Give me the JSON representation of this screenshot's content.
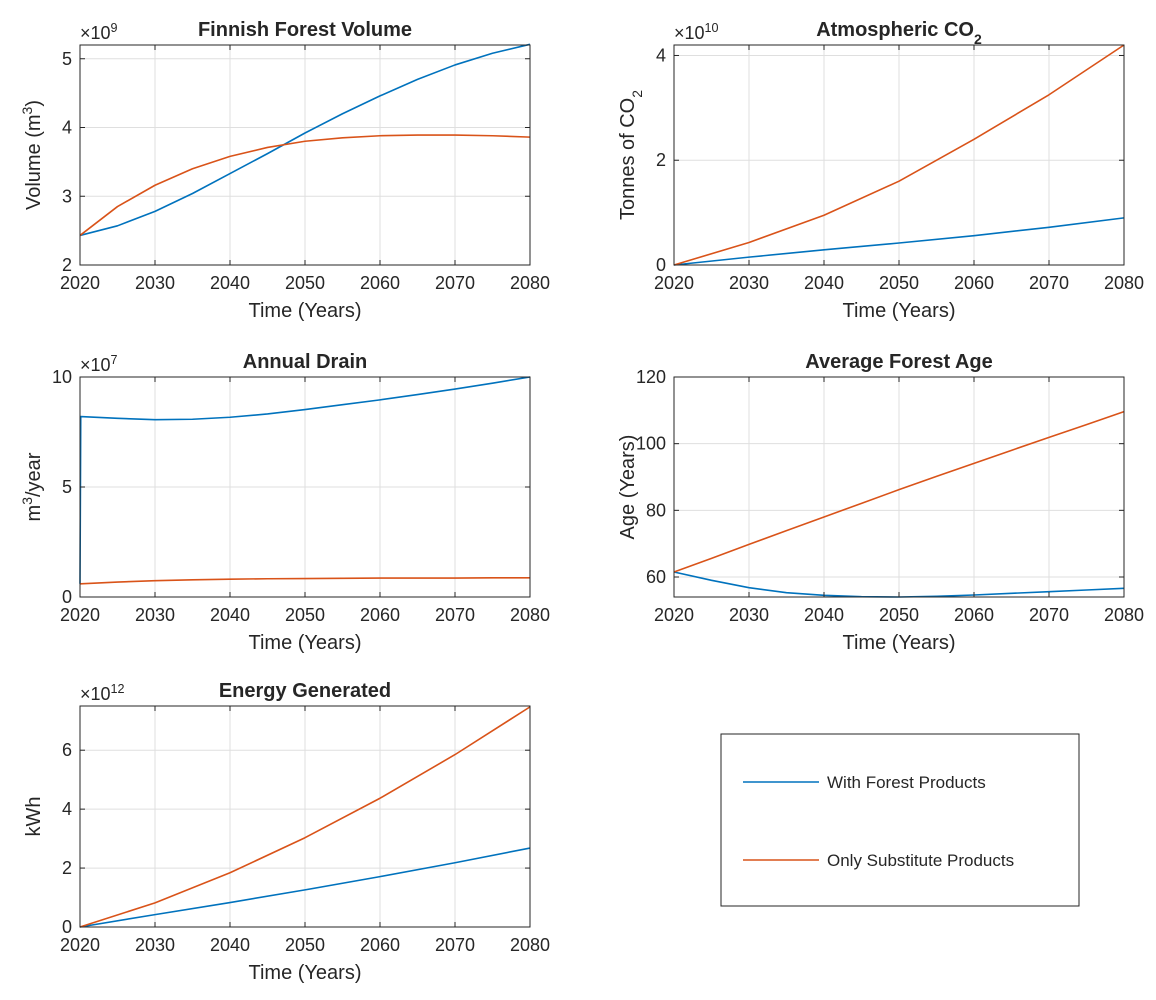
{
  "colors": {
    "series_1": "#0072BD",
    "series_2": "#D95319",
    "grid": "#dfdfdf",
    "axis": "#262626"
  },
  "legend": {
    "entries": [
      {
        "label": "With Forest Products",
        "color": "#0072BD"
      },
      {
        "label": "Only Substitute Products",
        "color": "#D95319"
      }
    ]
  },
  "chart_data": [
    {
      "type": "line",
      "title": "Finnish Forest Volume",
      "xlabel": "Time (Years)",
      "ylabel": "Volume (m^3)",
      "y_exponent": "9",
      "xlim": [
        2020,
        2080
      ],
      "ylim": [
        2,
        5.2
      ],
      "xticks": [
        2020,
        2030,
        2040,
        2050,
        2060,
        2070,
        2080
      ],
      "yticks": [
        2,
        3,
        4,
        5
      ],
      "grid": true,
      "x": [
        2020,
        2025,
        2030,
        2035,
        2040,
        2045,
        2050,
        2055,
        2060,
        2065,
        2070,
        2075,
        2080
      ],
      "series": [
        {
          "name": "With Forest Products",
          "values": [
            2.43,
            2.57,
            2.78,
            3.04,
            3.33,
            3.62,
            3.92,
            4.2,
            4.46,
            4.7,
            4.91,
            5.08,
            5.21
          ]
        },
        {
          "name": "Only Substitute Products",
          "values": [
            2.43,
            2.85,
            3.16,
            3.4,
            3.58,
            3.71,
            3.8,
            3.85,
            3.88,
            3.89,
            3.89,
            3.88,
            3.86
          ]
        }
      ]
    },
    {
      "type": "line",
      "title": "Atmospheric CO₂",
      "xlabel": "Time (Years)",
      "ylabel": "Tonnes of CO₂",
      "y_exponent": "10",
      "xlim": [
        2020,
        2080
      ],
      "ylim": [
        0,
        4.2
      ],
      "xticks": [
        2020,
        2030,
        2040,
        2050,
        2060,
        2070,
        2080
      ],
      "yticks": [
        0,
        2,
        4
      ],
      "grid": true,
      "x": [
        2020,
        2030,
        2040,
        2050,
        2060,
        2070,
        2080
      ],
      "series": [
        {
          "name": "With Forest Products",
          "values": [
            0,
            0.15,
            0.29,
            0.42,
            0.56,
            0.72,
            0.9
          ]
        },
        {
          "name": "Only Substitute Products",
          "values": [
            0,
            0.43,
            0.95,
            1.6,
            2.4,
            3.25,
            4.2
          ]
        }
      ]
    },
    {
      "type": "line",
      "title": "Annual Drain",
      "xlabel": "Time (Years)",
      "ylabel": "m^3/year",
      "y_exponent": "7",
      "xlim": [
        2020,
        2080
      ],
      "ylim": [
        0,
        10
      ],
      "xticks": [
        2020,
        2030,
        2040,
        2050,
        2060,
        2070,
        2080
      ],
      "yticks": [
        0,
        5,
        10
      ],
      "grid": true,
      "x": [
        2020,
        2020.1,
        2025,
        2030,
        2035,
        2040,
        2045,
        2050,
        2055,
        2060,
        2065,
        2070,
        2075,
        2080
      ],
      "series": [
        {
          "name": "With Forest Products",
          "values": [
            0.6,
            8.2,
            8.12,
            8.06,
            8.08,
            8.17,
            8.32,
            8.52,
            8.74,
            8.96,
            9.2,
            9.45,
            9.72,
            10.0
          ]
        },
        {
          "name": "Only Substitute Products",
          "values": [
            0.6,
            0.6,
            0.68,
            0.74,
            0.78,
            0.81,
            0.83,
            0.84,
            0.85,
            0.86,
            0.86,
            0.86,
            0.87,
            0.87
          ]
        }
      ]
    },
    {
      "type": "line",
      "title": "Average Forest Age",
      "xlabel": "Time (Years)",
      "ylabel": "Age (Years)",
      "y_exponent": "",
      "xlim": [
        2020,
        2080
      ],
      "ylim": [
        54,
        120
      ],
      "xticks": [
        2020,
        2030,
        2040,
        2050,
        2060,
        2070,
        2080
      ],
      "yticks": [
        60,
        80,
        100,
        120
      ],
      "grid": true,
      "x": [
        2020,
        2025,
        2030,
        2035,
        2040,
        2045,
        2050,
        2055,
        2060,
        2065,
        2070,
        2075,
        2080
      ],
      "series": [
        {
          "name": "With Forest Products",
          "values": [
            61.5,
            59.0,
            56.8,
            55.3,
            54.5,
            54.1,
            54.0,
            54.2,
            54.6,
            55.1,
            55.6,
            56.1,
            56.6
          ]
        },
        {
          "name": "Only Substitute Products",
          "values": [
            61.5,
            65.6,
            69.8,
            73.9,
            78.0,
            82.1,
            86.2,
            90.2,
            94.1,
            98.0,
            101.9,
            105.7,
            109.6
          ]
        }
      ]
    },
    {
      "type": "line",
      "title": "Energy Generated",
      "xlabel": "Time (Years)",
      "ylabel": "kWh",
      "y_exponent": "12",
      "xlim": [
        2020,
        2080
      ],
      "ylim": [
        0,
        7.5
      ],
      "xticks": [
        2020,
        2030,
        2040,
        2050,
        2060,
        2070,
        2080
      ],
      "yticks": [
        0,
        2,
        4,
        6
      ],
      "grid": true,
      "x": [
        2020,
        2030,
        2040,
        2050,
        2060,
        2070,
        2080
      ],
      "series": [
        {
          "name": "With Forest Products",
          "values": [
            0,
            0.42,
            0.83,
            1.26,
            1.71,
            2.18,
            2.68
          ]
        },
        {
          "name": "Only Substitute Products",
          "values": [
            0,
            0.82,
            1.84,
            3.03,
            4.37,
            5.85,
            7.47
          ]
        }
      ]
    }
  ]
}
